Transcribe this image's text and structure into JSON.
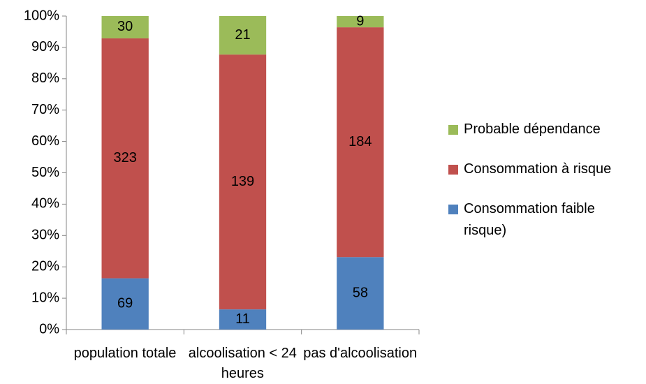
{
  "chart_data": {
    "type": "bar",
    "stacked": "percent",
    "categories": [
      "population totale",
      "alcoolisation < 24 heures",
      "pas d'alcoolisation"
    ],
    "series": [
      {
        "name": "Consommation faible risque)",
        "color": "#4f81bd",
        "values": [
          69,
          11,
          58
        ]
      },
      {
        "name": "Consommation à risque",
        "color": "#c0504d",
        "values": [
          323,
          139,
          184
        ]
      },
      {
        "name": "Probable dépendance",
        "color": "#9bbb59",
        "values": [
          30,
          21,
          9
        ]
      }
    ],
    "ylim": [
      0,
      100
    ],
    "yticks": [
      {
        "value": 0,
        "label": "0%"
      },
      {
        "value": 10,
        "label": "10%"
      },
      {
        "value": 20,
        "label": "20%"
      },
      {
        "value": 30,
        "label": "30%"
      },
      {
        "value": 40,
        "label": "40%"
      },
      {
        "value": 50,
        "label": "50%"
      },
      {
        "value": 60,
        "label": "60%"
      },
      {
        "value": 70,
        "label": "70%"
      },
      {
        "value": 80,
        "label": "80%"
      },
      {
        "value": 90,
        "label": "90%"
      },
      {
        "value": 100,
        "label": "100%"
      }
    ],
    "grid": false,
    "legend": "right"
  }
}
